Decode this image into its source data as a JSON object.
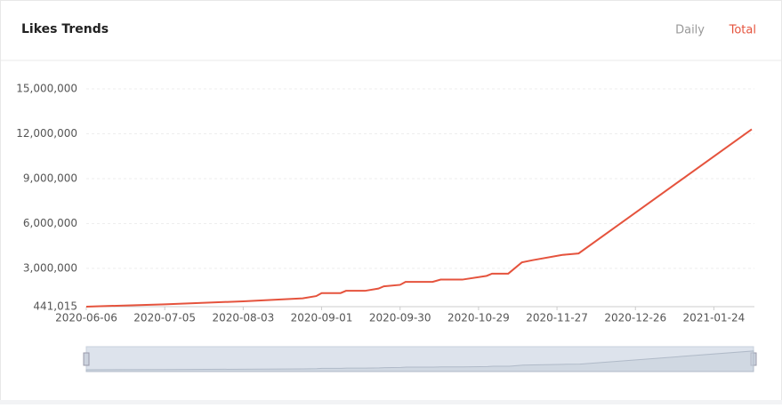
{
  "header": {
    "title": "Likes Trends",
    "tabs": [
      "Daily",
      "Total"
    ]
  },
  "chart_data": {
    "type": "line",
    "x": [
      "2020-06-06",
      "2020-07-05",
      "2020-08-03",
      "2020-08-25",
      "2020-08-30",
      "2020-09-01",
      "2020-09-08",
      "2020-09-10",
      "2020-09-17",
      "2020-09-22",
      "2020-09-24",
      "2020-09-30",
      "2020-10-02",
      "2020-10-12",
      "2020-10-15",
      "2020-10-23",
      "2020-11-01",
      "2020-11-03",
      "2020-11-09",
      "2020-11-14",
      "2020-11-18",
      "2020-11-29",
      "2020-12-05",
      "2021-02-07"
    ],
    "series": [
      {
        "name": "Total",
        "color": "#e5533d",
        "values": [
          441015,
          600000,
          800000,
          1000000,
          1150000,
          1350000,
          1350000,
          1500000,
          1500000,
          1650000,
          1800000,
          1900000,
          2100000,
          2100000,
          2250000,
          2250000,
          2500000,
          2650000,
          2650000,
          3400000,
          3550000,
          3900000,
          4000000,
          12300000
        ]
      }
    ],
    "xlim": [
      "2020-06-06",
      "2021-02-07"
    ],
    "xticks": [
      "2020-06-06",
      "2020-07-05",
      "2020-08-03",
      "2020-09-01",
      "2020-09-30",
      "2020-10-29",
      "2020-11-27",
      "2020-12-26",
      "2021-01-24"
    ],
    "ylim": [
      441015,
      15000000
    ],
    "yticks": [
      {
        "value": 441015,
        "label": "441,015"
      },
      {
        "value": 3000000,
        "label": "3,000,000"
      },
      {
        "value": 6000000,
        "label": "6,000,000"
      },
      {
        "value": 9000000,
        "label": "9,000,000"
      },
      {
        "value": 12000000,
        "label": "12,000,000"
      },
      {
        "value": 15000000,
        "label": "15,000,000"
      }
    ],
    "grid": true
  }
}
